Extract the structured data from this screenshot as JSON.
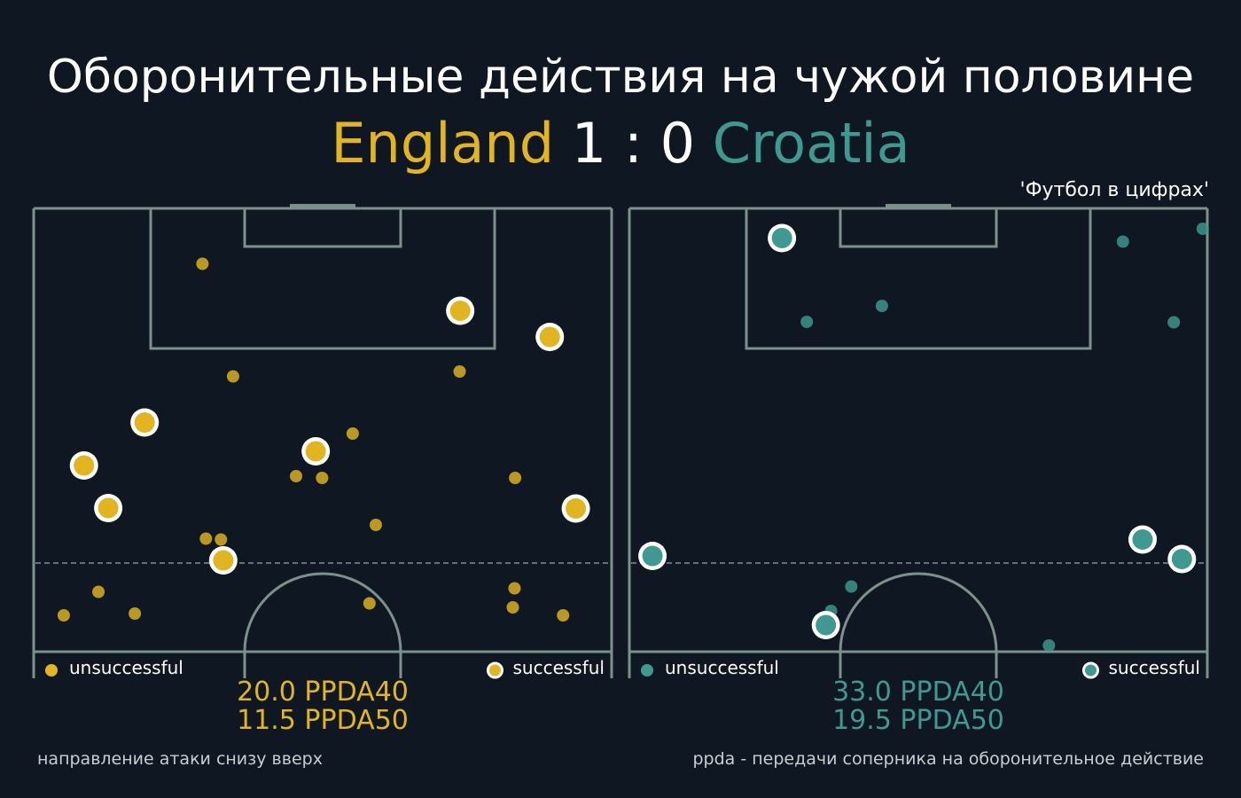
{
  "title": "Оборонительные действия на чужой половине",
  "score": {
    "home_team": "England",
    "home_goals": "1",
    "separator": ":",
    "away_goals": "0",
    "away_team": "Croatia"
  },
  "source": "'Футбол в цифрах'",
  "colors": {
    "background": "#0f1822",
    "pitch_lines": "#7d918c",
    "england": "#e2b520",
    "croatia": "#3e9990",
    "text": "#ffffff"
  },
  "legend": {
    "unsuccessful": "unsuccessful",
    "successful": "successful"
  },
  "footnotes": {
    "left": "направление атаки снизу вверх",
    "right": "ppda - передачи соперника на оборонительное действие"
  },
  "chart_data": [
    {
      "type": "scatter",
      "team": "England",
      "x_range": [
        0,
        100
      ],
      "y_range": [
        0,
        100
      ],
      "ppda40_label": "20.0 PPDA40",
      "ppda50_label": "11.5 PPDA50",
      "series": [
        {
          "name": "unsuccessful",
          "points": [
            [
              29.2,
              87.5
            ],
            [
              34.5,
              62.1
            ],
            [
              73.7,
              63.2
            ],
            [
              55.2,
              49.2
            ],
            [
              45.4,
              39.6
            ],
            [
              49.9,
              39.2
            ],
            [
              83.3,
              39.2
            ],
            [
              29.8,
              25.5
            ],
            [
              32.4,
              25.3
            ],
            [
              59.2,
              28.6
            ],
            [
              11.2,
              13.5
            ],
            [
              5.2,
              8.2
            ],
            [
              17.5,
              8.6
            ],
            [
              58.1,
              10.9
            ],
            [
              83.2,
              14.3
            ],
            [
              82.9,
              10.0
            ],
            [
              91.6,
              8.2
            ]
          ]
        },
        {
          "name": "successful",
          "points": [
            [
              73.8,
              76.9
            ],
            [
              89.3,
              71.0
            ],
            [
              19.2,
              51.7
            ],
            [
              48.8,
              45.2
            ],
            [
              8.7,
              42.0
            ],
            [
              12.9,
              32.4
            ],
            [
              93.8,
              32.3
            ],
            [
              32.8,
              20.6
            ]
          ]
        }
      ]
    },
    {
      "type": "scatter",
      "team": "Croatia",
      "x_range": [
        0,
        100
      ],
      "y_range": [
        0,
        100
      ],
      "ppda40_label": "33.0 PPDA40",
      "ppda50_label": "19.5 PPDA50",
      "series": [
        {
          "name": "unsuccessful",
          "points": [
            [
              30.7,
              74.4
            ],
            [
              43.7,
              78.0
            ],
            [
              85.4,
              92.5
            ],
            [
              99.2,
              95.4
            ],
            [
              94.2,
              74.3
            ],
            [
              90.2,
              25.8
            ],
            [
              38.4,
              14.7
            ],
            [
              34.9,
              9.2
            ],
            [
              72.6,
              1.4
            ]
          ]
        },
        {
          "name": "successful",
          "points": [
            [
              26.4,
              93.3
            ],
            [
              4.0,
              21.6
            ],
            [
              88.8,
              25.3
            ],
            [
              95.6,
              20.9
            ],
            [
              34.0,
              6.0
            ]
          ]
        }
      ]
    }
  ]
}
